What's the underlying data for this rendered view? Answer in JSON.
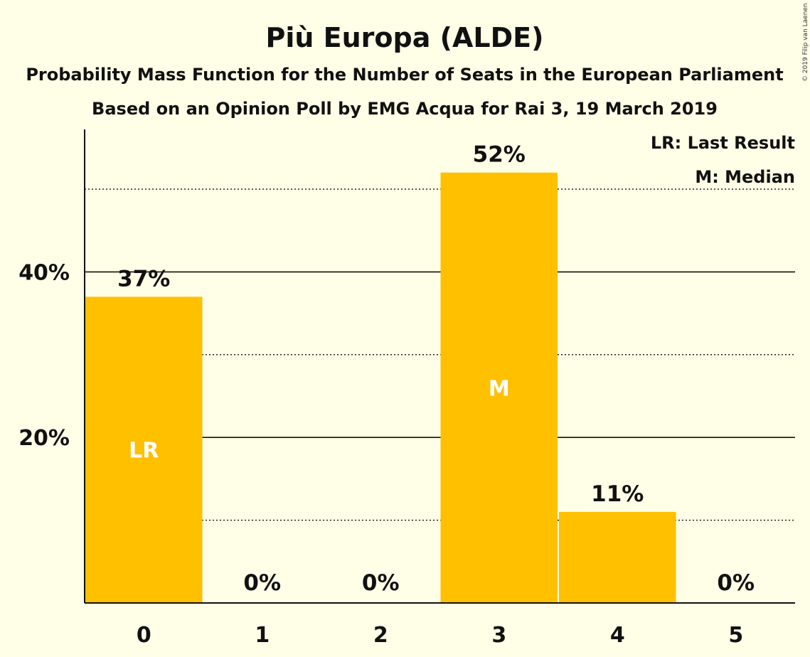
{
  "chart_data": {
    "type": "bar",
    "title": "Più Europa (ALDE)",
    "subtitle": "Probability Mass Function for the Number of Seats in the European Parliament",
    "subtitle2": "Based on an Opinion Poll by EMG Acqua for Rai 3, 19 March 2019",
    "copyright": "© 2019 Filip van Laenen",
    "categories": [
      "0",
      "1",
      "2",
      "3",
      "4",
      "5"
    ],
    "values": [
      37,
      0,
      0,
      52,
      11,
      0
    ],
    "value_labels": [
      "37%",
      "0%",
      "0%",
      "52%",
      "11%",
      "0%"
    ],
    "markers": [
      {
        "category": "0",
        "label": "LR"
      },
      {
        "category": "3",
        "label": "M"
      }
    ],
    "legend": {
      "placement": "top-right",
      "entries": [
        "LR: Last Result",
        "M: Median"
      ]
    },
    "ylim": [
      0,
      57
    ],
    "yticks": [
      {
        "value": 20,
        "label": "20%"
      },
      {
        "value": 40,
        "label": "40%"
      }
    ],
    "solid_gridlines": [
      20,
      40
    ],
    "dotted_gridlines": [
      10,
      30,
      50
    ],
    "bar_color": "#FFC000",
    "marker_text_color": "#FFFFFF",
    "background_color": "#FFFEE6",
    "xlabel": "",
    "ylabel": ""
  }
}
